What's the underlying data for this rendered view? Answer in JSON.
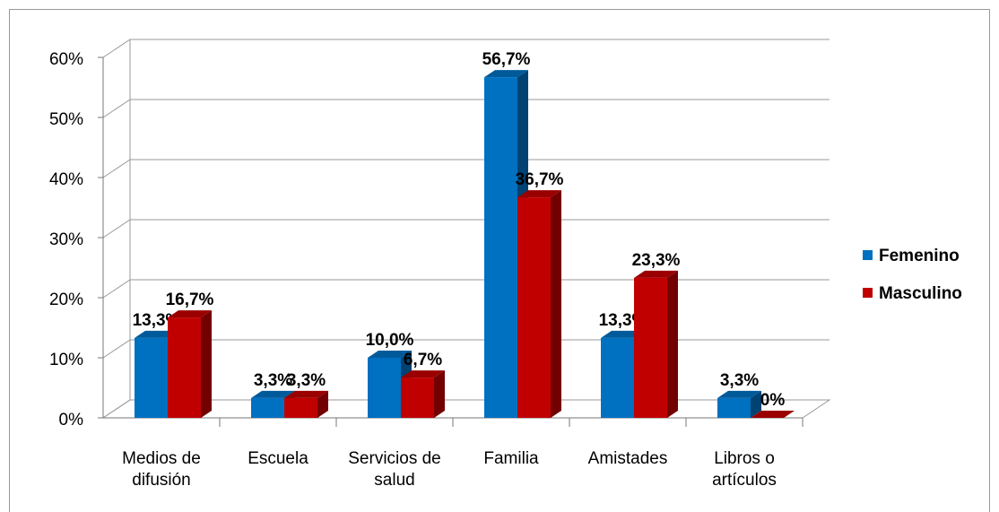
{
  "chart_data": {
    "type": "bar3d",
    "categories": [
      "Medios de difusión",
      "Escuela",
      "Servicios de salud",
      "Familia",
      "Amistades",
      "Libros o artículos"
    ],
    "series": [
      {
        "name": "Femenino",
        "color": "#0070c0",
        "values": [
          13.3,
          3.3,
          10.0,
          56.7,
          13.3,
          3.3
        ],
        "value_labels": [
          "13,3%",
          "3,3%",
          "10,0%",
          "56,7%",
          "13,3%",
          "3,3%"
        ]
      },
      {
        "name": "Masculino",
        "color": "#c00000",
        "values": [
          16.7,
          3.3,
          6.7,
          36.7,
          23.3,
          0
        ],
        "value_labels": [
          "16,7%",
          "3,3%",
          "6,7%",
          "36,7%",
          "23,3%",
          "0%"
        ]
      }
    ],
    "ylim": [
      0,
      60
    ],
    "yticks": [
      {
        "value": 0,
        "label": "0%"
      },
      {
        "value": 10,
        "label": "10%"
      },
      {
        "value": 20,
        "label": "20%"
      },
      {
        "value": 30,
        "label": "30%"
      },
      {
        "value": 40,
        "label": "40%"
      },
      {
        "value": 50,
        "label": "50%"
      },
      {
        "value": 60,
        "label": "60%"
      }
    ],
    "grid": true,
    "legend": "right"
  }
}
